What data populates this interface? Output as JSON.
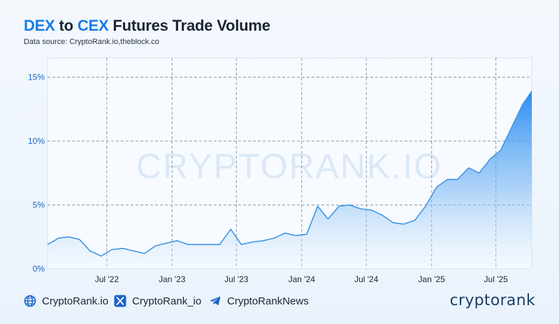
{
  "header": {
    "title_parts": [
      {
        "text": "DEX",
        "highlight": true
      },
      {
        "text": " to ",
        "highlight": false
      },
      {
        "text": "CEX",
        "highlight": true
      },
      {
        "text": " Futures Trade Volume",
        "highlight": false
      }
    ],
    "subtitle": "Data source: CryptoRank.io,theblock.co"
  },
  "watermark": "CRYPTORANK.IO",
  "colors": {
    "accent": "#1a7be3",
    "line": "#3f96e6",
    "area_top": "#1f86f0",
    "area_bottom": "#e8f2fc",
    "grid": "#8a97a8",
    "text": "#1c2434",
    "axis_label": "#1a63c7"
  },
  "chart_data": {
    "type": "area",
    "title": "DEX to CEX Futures Trade Volume",
    "y_unit": "%",
    "ylim": [
      0,
      16.5
    ],
    "y_ticks": [
      0,
      5,
      10,
      15
    ],
    "y_tick_labels": [
      "0%",
      "5%",
      "10%",
      "15%"
    ],
    "xlim": [
      "2022-01-15",
      "2025-10-10"
    ],
    "x_ticks": [
      "2022-07-01",
      "2023-01-01",
      "2023-07-01",
      "2024-01-01",
      "2024-07-01",
      "2025-01-01",
      "2025-07-01"
    ],
    "x_tick_labels": [
      "Jul '22",
      "Jan '23",
      "Jul '23",
      "Jan '24",
      "Jul '24",
      "Jan '25",
      "Jul '25"
    ],
    "grid": true,
    "legend": "none",
    "series": [
      {
        "points": [
          [
            "2022-01-15",
            1.9
          ],
          [
            "2022-02-15",
            2.4
          ],
          [
            "2022-03-15",
            2.5
          ],
          [
            "2022-04-15",
            2.3
          ],
          [
            "2022-05-15",
            1.4
          ],
          [
            "2022-06-15",
            1.0
          ],
          [
            "2022-07-15",
            1.5
          ],
          [
            "2022-08-15",
            1.6
          ],
          [
            "2022-09-15",
            1.4
          ],
          [
            "2022-10-15",
            1.2
          ],
          [
            "2022-11-15",
            1.8
          ],
          [
            "2022-12-15",
            2.0
          ],
          [
            "2023-01-15",
            2.2
          ],
          [
            "2023-02-15",
            1.9
          ],
          [
            "2023-03-15",
            1.9
          ],
          [
            "2023-04-15",
            1.9
          ],
          [
            "2023-05-15",
            1.9
          ],
          [
            "2023-06-15",
            3.1
          ],
          [
            "2023-07-15",
            1.9
          ],
          [
            "2023-08-15",
            2.1
          ],
          [
            "2023-09-15",
            2.2
          ],
          [
            "2023-10-15",
            2.4
          ],
          [
            "2023-11-15",
            2.8
          ],
          [
            "2023-12-15",
            2.6
          ],
          [
            "2024-01-15",
            2.7
          ],
          [
            "2024-02-15",
            4.9
          ],
          [
            "2024-03-15",
            3.9
          ],
          [
            "2024-04-15",
            4.9
          ],
          [
            "2024-05-15",
            5.0
          ],
          [
            "2024-06-15",
            4.7
          ],
          [
            "2024-07-15",
            4.6
          ],
          [
            "2024-08-15",
            4.2
          ],
          [
            "2024-09-15",
            3.6
          ],
          [
            "2024-10-15",
            3.5
          ],
          [
            "2024-11-15",
            3.8
          ],
          [
            "2024-12-15",
            4.9
          ],
          [
            "2025-01-15",
            6.4
          ],
          [
            "2025-02-15",
            7.0
          ],
          [
            "2025-03-15",
            7.0
          ],
          [
            "2025-04-15",
            7.9
          ],
          [
            "2025-05-15",
            7.5
          ],
          [
            "2025-06-15",
            8.6
          ],
          [
            "2025-07-15",
            9.3
          ],
          [
            "2025-08-15",
            11.1
          ],
          [
            "2025-09-15",
            12.9
          ],
          [
            "2025-10-10",
            13.9
          ]
        ]
      }
    ]
  },
  "footer": {
    "links": [
      {
        "icon": "globe-icon",
        "label": "CryptoRank.io"
      },
      {
        "icon": "x-logo-icon",
        "label": "CryptoRank_io"
      },
      {
        "icon": "telegram-icon",
        "label": "CryptoRankNews"
      }
    ],
    "brand": "cryptorank"
  }
}
